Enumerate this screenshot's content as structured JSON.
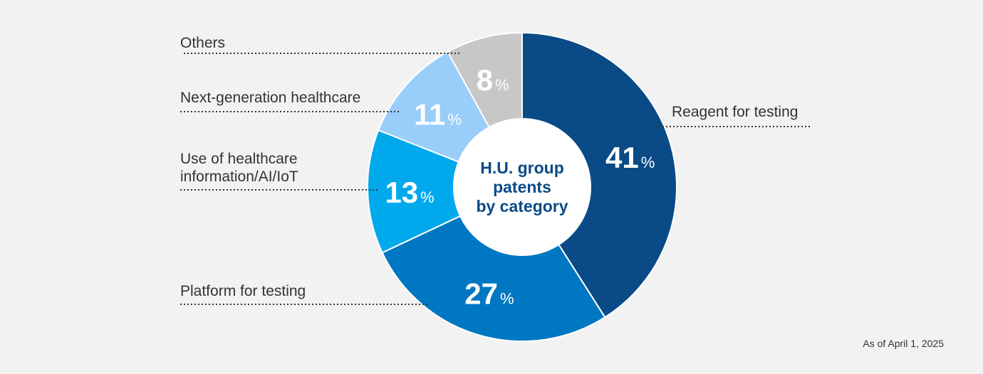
{
  "chart_data": {
    "type": "pie",
    "variant": "donut",
    "center_title": [
      "H.U. group",
      "patents",
      "by category"
    ],
    "percent_symbol": "%",
    "slices": [
      {
        "label": [
          "Reagent for testing"
        ],
        "value": 41,
        "color": "#0a4a86"
      },
      {
        "label": [
          "Platform for testing"
        ],
        "value": 27,
        "color": "#0077c2"
      },
      {
        "label": [
          "Use of healthcare",
          "information/AI/IoT"
        ],
        "value": 13,
        "color": "#00a9ec"
      },
      {
        "label": [
          "Next-generation healthcare"
        ],
        "value": 11,
        "color": "#99cdfa"
      },
      {
        "label": [
          "Others"
        ],
        "value": 8,
        "color": "#c7c7c7"
      }
    ],
    "footnote": "As of April 1, 2025",
    "legend": "none"
  }
}
